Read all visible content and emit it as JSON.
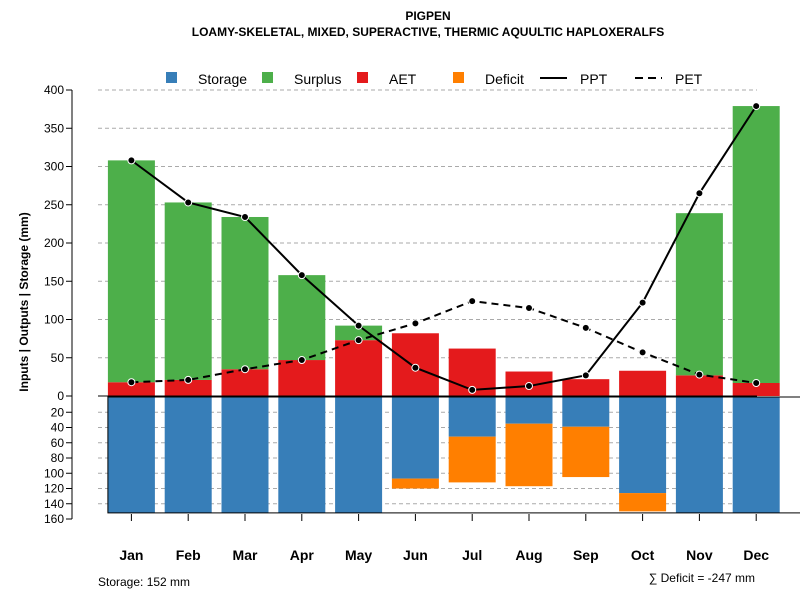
{
  "chart_data": {
    "type": "bar",
    "title": "PIGPEN",
    "subtitle": "LOAMY-SKELETAL, MIXED, SUPERACTIVE, THERMIC AQUULTIC HAPLOXERALFS",
    "ylabel": "Inputs | Outputs | Storage    (mm)",
    "xlabel": "",
    "categories": [
      "Jan",
      "Feb",
      "Mar",
      "Apr",
      "May",
      "Jun",
      "Jul",
      "Aug",
      "Sep",
      "Oct",
      "Nov",
      "Dec"
    ],
    "ylim_top": [
      0,
      400
    ],
    "ylim_bottom": [
      0,
      160
    ],
    "yticks_top": [
      "0",
      "50",
      "100",
      "150",
      "200",
      "250",
      "300",
      "350",
      "400"
    ],
    "yticks_bottom": [
      "20",
      "40",
      "60",
      "80",
      "100",
      "120",
      "140",
      "160"
    ],
    "legend": {
      "storage": "Storage",
      "surplus": "Surplus",
      "aet": "AET",
      "deficit": "Deficit",
      "ppt": "PPT",
      "pet": "PET"
    },
    "colors": {
      "storage": "#377EB8",
      "surplus": "#4DAF4A",
      "aet": "#E41A1C",
      "deficit": "#FF7F00"
    },
    "series": [
      {
        "name": "AET",
        "values": [
          18,
          21,
          35,
          47,
          73,
          82,
          62,
          32,
          22,
          33,
          27,
          17
        ]
      },
      {
        "name": "Surplus",
        "values": [
          290,
          232,
          199,
          111,
          19,
          0,
          0,
          0,
          0,
          0,
          212,
          362
        ]
      },
      {
        "name": "PPT",
        "values": [
          308,
          253,
          234,
          158,
          92,
          37,
          8,
          13,
          27,
          122,
          265,
          379
        ]
      },
      {
        "name": "PET",
        "values": [
          18,
          21,
          35,
          47,
          73,
          95,
          124,
          115,
          89,
          57,
          28,
          17
        ]
      },
      {
        "name": "Storage",
        "values": [
          152,
          152,
          152,
          152,
          152,
          107,
          52,
          35,
          39,
          126,
          152,
          152
        ]
      },
      {
        "name": "Deficit",
        "values": [
          0,
          0,
          0,
          0,
          0,
          13,
          60,
          82,
          66,
          24,
          0,
          0
        ]
      }
    ],
    "storage_total_label": "Storage: 152 mm",
    "deficit_total_label": "∑ Deficit = -247 mm"
  }
}
